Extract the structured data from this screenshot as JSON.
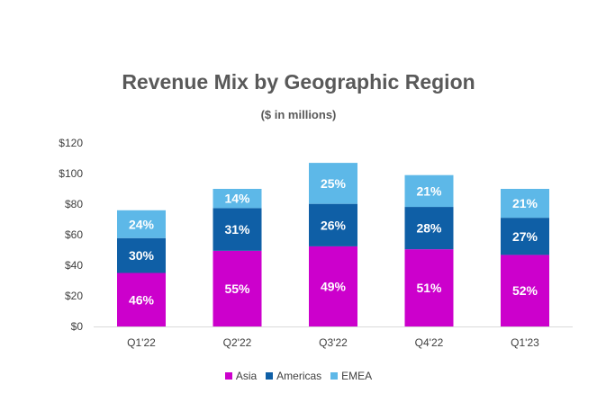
{
  "chart_data": {
    "type": "bar",
    "stacked": true,
    "title": "Revenue Mix by Geographic Region",
    "subtitle": "($ in millions)",
    "categories": [
      "Q1'22",
      "Q2'22",
      "Q3'22",
      "Q4'22",
      "Q1'23"
    ],
    "totals": [
      76,
      90,
      107,
      99,
      90
    ],
    "series": [
      {
        "name": "Asia",
        "color": "#CC00CC",
        "percent_labels": [
          "46%",
          "55%",
          "49%",
          "51%",
          "52%"
        ],
        "values": [
          35,
          49.5,
          52.4,
          50.5,
          46.8
        ]
      },
      {
        "name": "Americas",
        "color": "#0F5FA6",
        "percent_labels": [
          "30%",
          "31%",
          "26%",
          "28%",
          "27%"
        ],
        "values": [
          22.8,
          27.9,
          27.8,
          27.7,
          24.3
        ]
      },
      {
        "name": "EMEA",
        "color": "#5DB8E8",
        "percent_labels": [
          "24%",
          "14%",
          "25%",
          "21%",
          "21%"
        ],
        "values": [
          18.2,
          12.6,
          26.8,
          20.8,
          18.9
        ]
      }
    ],
    "ylim": [
      0,
      120
    ],
    "y_ticks": [
      0,
      20,
      40,
      60,
      80,
      100,
      120
    ],
    "y_tick_labels": [
      "$0",
      "$20",
      "$40",
      "$60",
      "$80",
      "$100",
      "$120"
    ],
    "grid": false,
    "legend_position": "bottom"
  }
}
